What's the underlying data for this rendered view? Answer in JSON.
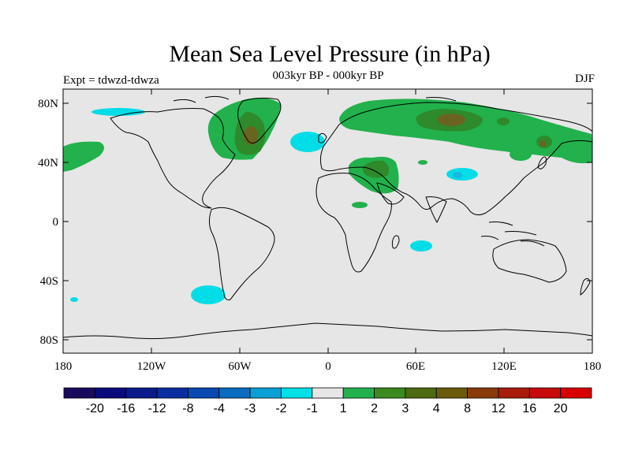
{
  "map": {
    "title": "Mean Sea Level Pressure (in hPa)",
    "subtitle": "003kyr BP - 000kyr BP",
    "left_label": "Expt = tdwzd-tdwza",
    "right_label": "DJF",
    "lat_ticks": [
      "80N",
      "40N",
      "0",
      "40S",
      "80S"
    ],
    "lon_ticks": [
      "180",
      "120W",
      "60W",
      "0",
      "60E",
      "120E",
      "180"
    ],
    "colors": {
      "background": "#e6e6e6",
      "coastline": "#000000",
      "cyan_negative": "#00dde6",
      "light_green": "#22b14c",
      "dark_green": "#2e8a2b",
      "brown": "#6b6420"
    }
  },
  "legend": {
    "labels": [
      "-20",
      "-16",
      "-12",
      "-8",
      "-4",
      "-3",
      "-2",
      "-1",
      "1",
      "2",
      "3",
      "4",
      "8",
      "12",
      "16",
      "20"
    ],
    "colors": [
      "#1a0a5e",
      "#0a0a7a",
      "#0a1a8a",
      "#0a2ea0",
      "#0a48b2",
      "#0a6cc0",
      "#0aa0d6",
      "#00e0e6",
      "#e6e6e6",
      "#22b14c",
      "#3a8a20",
      "#4e6a10",
      "#6a5a0a",
      "#8a3a0a",
      "#a81a0a",
      "#c80a0a",
      "#d80000"
    ]
  }
}
